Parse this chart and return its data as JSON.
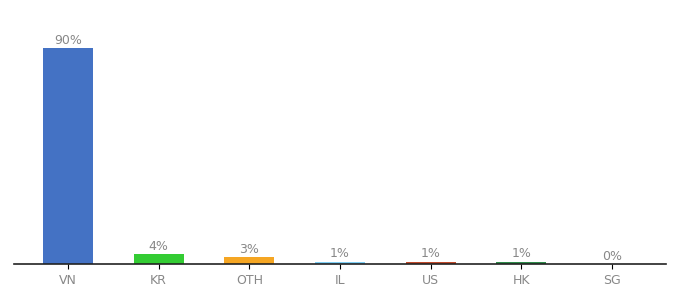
{
  "categories": [
    "VN",
    "KR",
    "OTH",
    "IL",
    "US",
    "HK",
    "SG"
  ],
  "values": [
    90,
    4,
    3,
    1,
    1,
    1,
    0
  ],
  "labels": [
    "90%",
    "4%",
    "3%",
    "1%",
    "1%",
    "1%",
    "0%"
  ],
  "bar_colors": [
    "#4472c4",
    "#33cc33",
    "#f5a623",
    "#7ecef4",
    "#c04a2a",
    "#2e8b4a",
    "#aaaaaa"
  ],
  "background_color": "#ffffff",
  "label_fontsize": 9,
  "tick_fontsize": 9,
  "label_color": "#888888",
  "tick_color": "#888888"
}
